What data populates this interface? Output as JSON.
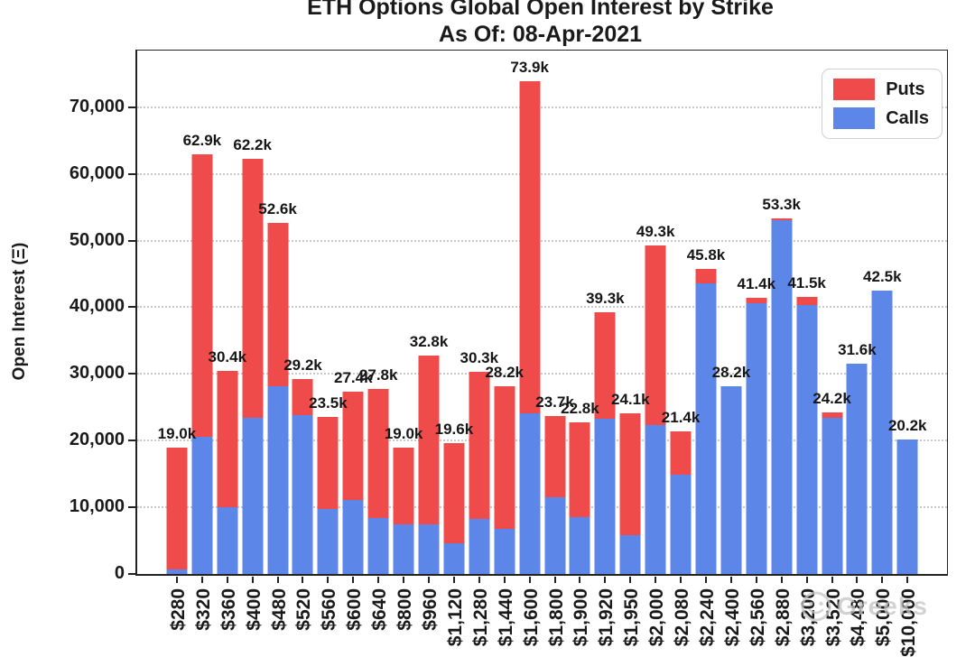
{
  "watermark": {
    "text": "Greeks"
  },
  "chart_data": {
    "type": "bar",
    "variant": "stacked",
    "title": "ETH Options Global Open Interest by Strike",
    "subtitle": "As Of: 08-Apr-2021",
    "xlabel": "",
    "ylabel": "Open Interest (Ξ)",
    "ylim": [
      0,
      78500
    ],
    "grid": "horizontal-dotted",
    "legend_position": "upper-right",
    "legend": [
      {
        "name": "Puts",
        "color": "#F04B4B"
      },
      {
        "name": "Calls",
        "color": "#5C87E8"
      }
    ],
    "yticks": [
      {
        "value": 0,
        "label": "0"
      },
      {
        "value": 10000,
        "label": "10,000"
      },
      {
        "value": 20000,
        "label": "20,000"
      },
      {
        "value": 30000,
        "label": "30,000"
      },
      {
        "value": 40000,
        "label": "40,000"
      },
      {
        "value": 50000,
        "label": "50,000"
      },
      {
        "value": 60000,
        "label": "60,000"
      },
      {
        "value": 70000,
        "label": "70,000"
      }
    ],
    "categories": [
      "$280",
      "$320",
      "$360",
      "$400",
      "$480",
      "$520",
      "$560",
      "$600",
      "$640",
      "$800",
      "$960",
      "$1,120",
      "$1,280",
      "$1,440",
      "$1,600",
      "$1,800",
      "$1,900",
      "$1,920",
      "$1,950",
      "$2,000",
      "$2,080",
      "$2,240",
      "$2,400",
      "$2,560",
      "$2,880",
      "$3,200",
      "$3,520",
      "$4,480",
      "$5,000",
      "$10,000"
    ],
    "bar_labels": [
      "19.0k",
      "62.9k",
      "30.4k",
      "62.2k",
      "52.6k",
      "29.2k",
      "23.5k",
      "27.4k",
      "27.8k",
      "19.0k",
      "32.8k",
      "19.6k",
      "30.3k",
      "28.2k",
      "73.9k",
      "23.7k",
      "22.8k",
      "39.3k",
      "24.1k",
      "49.3k",
      "21.4k",
      "45.8k",
      "28.2k",
      "41.4k",
      "53.3k",
      "41.5k",
      "24.2k",
      "31.6k",
      "42.5k",
      "20.2k"
    ],
    "totals": [
      19000,
      62900,
      30400,
      62200,
      52600,
      29200,
      23500,
      27400,
      27800,
      19000,
      32800,
      19600,
      30300,
      28200,
      73900,
      23700,
      22800,
      39300,
      24100,
      49300,
      21400,
      45800,
      28200,
      41400,
      53300,
      41500,
      24200,
      31600,
      42500,
      20200
    ],
    "series": [
      {
        "name": "Puts",
        "values": [
          18300,
          42300,
          20400,
          38800,
          24400,
          5400,
          13800,
          16300,
          19400,
          11600,
          25400,
          15000,
          22000,
          21400,
          49800,
          12200,
          14300,
          16000,
          18300,
          27000,
          6500,
          2200,
          0,
          800,
          300,
          1100,
          800,
          0,
          0,
          0
        ]
      },
      {
        "name": "Calls",
        "values": [
          700,
          20600,
          10000,
          23400,
          28200,
          23800,
          9700,
          11100,
          8400,
          7400,
          7400,
          4600,
          8300,
          6800,
          24100,
          11500,
          8500,
          23300,
          5800,
          22300,
          14900,
          43600,
          28200,
          40600,
          53000,
          40400,
          23400,
          31600,
          42500,
          20200
        ]
      }
    ]
  }
}
